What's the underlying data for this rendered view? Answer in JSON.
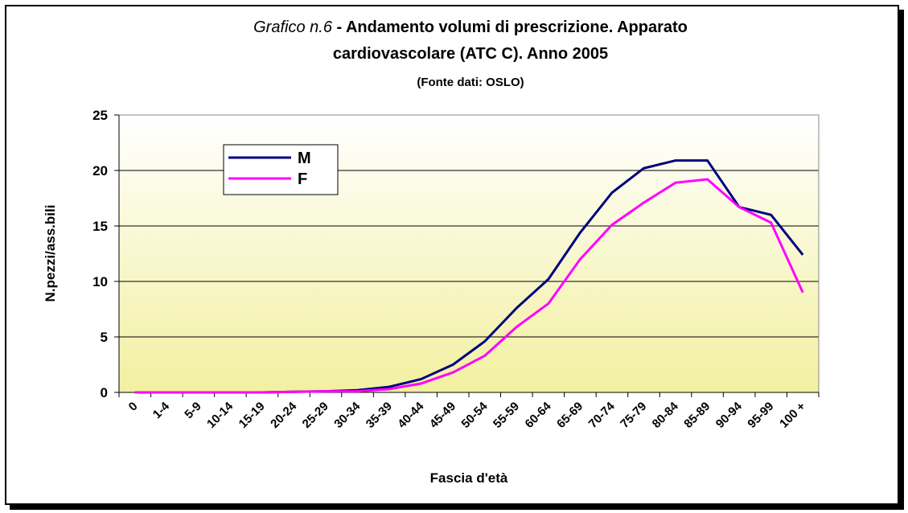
{
  "chart_data": {
    "type": "line",
    "title": [
      "Grafico n.6",
      "- Andamento volumi di prescrizione. Apparato",
      "cardiovascolare (ATC C). Anno 2005"
    ],
    "subtitle": "(Fonte dati: OSLO)",
    "x_label": "Fascia d'età",
    "y_label": "N.pezzi/ass.bili",
    "categories": [
      "0",
      "1-4",
      "5-9",
      "10-14",
      "15-19",
      "20-24",
      "25-29",
      "30-34",
      "35-39",
      "40-44",
      "45-49",
      "50-54",
      "55-59",
      "60-64",
      "65-69",
      "70-74",
      "75-79",
      "80-84",
      "85-89",
      "90-94",
      "95-99",
      "100 +"
    ],
    "series": [
      {
        "name": "M",
        "color": "#000080",
        "values": [
          0,
          0,
          0,
          0,
          0,
          0.05,
          0.1,
          0.2,
          0.5,
          1.2,
          2.5,
          4.6,
          7.6,
          10.2,
          14.4,
          18.0,
          20.2,
          20.9,
          20.9,
          16.7,
          16.0,
          12.4
        ]
      },
      {
        "name": "F",
        "color": "#ff00ff",
        "values": [
          0,
          0,
          0,
          0,
          0,
          0.05,
          0.1,
          0.1,
          0.3,
          0.8,
          1.8,
          3.3,
          5.9,
          8.0,
          12.0,
          15.1,
          17.1,
          18.9,
          19.2,
          16.7,
          15.3,
          9.0
        ]
      }
    ],
    "ylim": [
      0,
      25
    ],
    "yticks": [
      0,
      5,
      10,
      15,
      20,
      25
    ],
    "grid": true,
    "legend": "upper left"
  }
}
